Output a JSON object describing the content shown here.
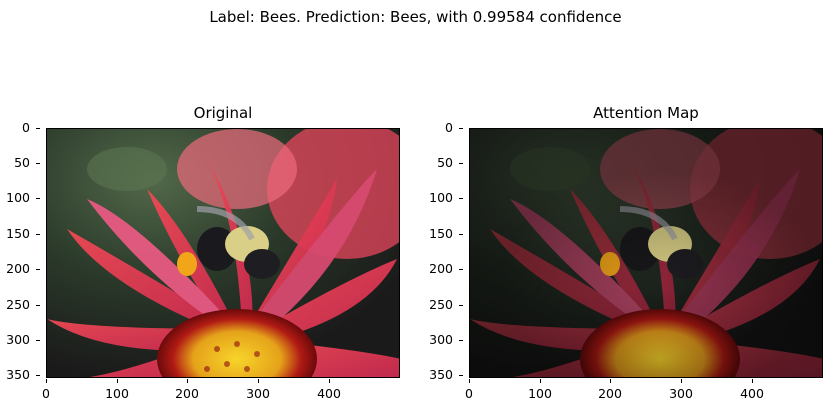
{
  "figure": {
    "suptitle": "Label: Bees. Prediction: Bees, with 0.99584 confidence"
  },
  "panels": [
    {
      "title": "Original",
      "image": "bee-on-red-flower-photo"
    },
    {
      "title": "Attention Map",
      "image": "bee-on-red-flower-attention-overlay"
    }
  ],
  "axes": {
    "yticks": [
      "0",
      "50",
      "100",
      "150",
      "200",
      "250",
      "300",
      "350"
    ],
    "xticks": [
      "0",
      "100",
      "200",
      "300",
      "400"
    ]
  },
  "colors": {
    "petal_red": "#e0314a",
    "petal_pink": "#d9607a",
    "flower_center": "#f2c51a",
    "center_ring": "#8b0f10",
    "bee_black": "#16161a",
    "bee_yellow": "#d6c878",
    "background_dark": "#2b3a2a"
  }
}
